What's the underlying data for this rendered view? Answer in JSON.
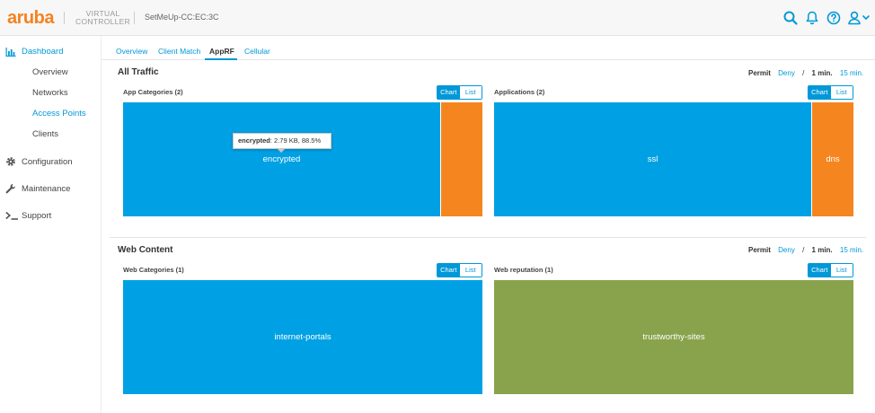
{
  "header": {
    "logo": "aruba",
    "product_line1": "VIRTUAL",
    "product_line2": "CONTROLLER",
    "device_name": "SetMeUp-CC:EC:3C",
    "icons": [
      "search-icon",
      "bell-icon",
      "help-icon",
      "user-icon"
    ]
  },
  "sidebar": {
    "dashboard": "Dashboard",
    "overview": "Overview",
    "networks": "Networks",
    "access_points": "Access Points",
    "clients": "Clients",
    "configuration": "Configuration",
    "maintenance": "Maintenance",
    "support": "Support"
  },
  "tabs": [
    "Overview",
    "Client Match",
    "AppRF",
    "Cellular"
  ],
  "all_traffic": {
    "title": "All Traffic",
    "permit": "Permit",
    "deny": "Deny",
    "slash": "/",
    "one_min": "1 min.",
    "fifteen_min": "15 min.",
    "app_categories": {
      "title": "App Categories (2)",
      "chart": "Chart",
      "list": "List",
      "blocks": [
        {
          "label": "encrypted",
          "fraction": 0.885,
          "color": "#00a1e4"
        },
        {
          "label": "",
          "fraction": 0.115,
          "color": "#f5851f"
        }
      ],
      "tooltip_name": "encrypted",
      "tooltip_value": ": 2.79 KB, 88.5%"
    },
    "applications": {
      "title": "Applications (2)",
      "chart": "Chart",
      "list": "List",
      "blocks": [
        {
          "label": "ssl",
          "fraction": 0.885,
          "color": "#00a1e4"
        },
        {
          "label": "dns",
          "fraction": 0.115,
          "color": "#f5851f"
        }
      ]
    }
  },
  "web_content": {
    "title": "Web Content",
    "permit": "Permit",
    "deny": "Deny",
    "slash": "/",
    "one_min": "1 min.",
    "fifteen_min": "15 min.",
    "web_categories": {
      "title": "Web Categories (1)",
      "chart": "Chart",
      "list": "List",
      "blocks": [
        {
          "label": "internet-portals",
          "fraction": 1.0,
          "color": "#00a1e4"
        }
      ]
    },
    "web_reputation": {
      "title": "Web reputation (1)",
      "chart": "Chart",
      "list": "List",
      "blocks": [
        {
          "label": "trustworthy-sites",
          "fraction": 1.0,
          "color": "#88a34c"
        }
      ]
    }
  }
}
